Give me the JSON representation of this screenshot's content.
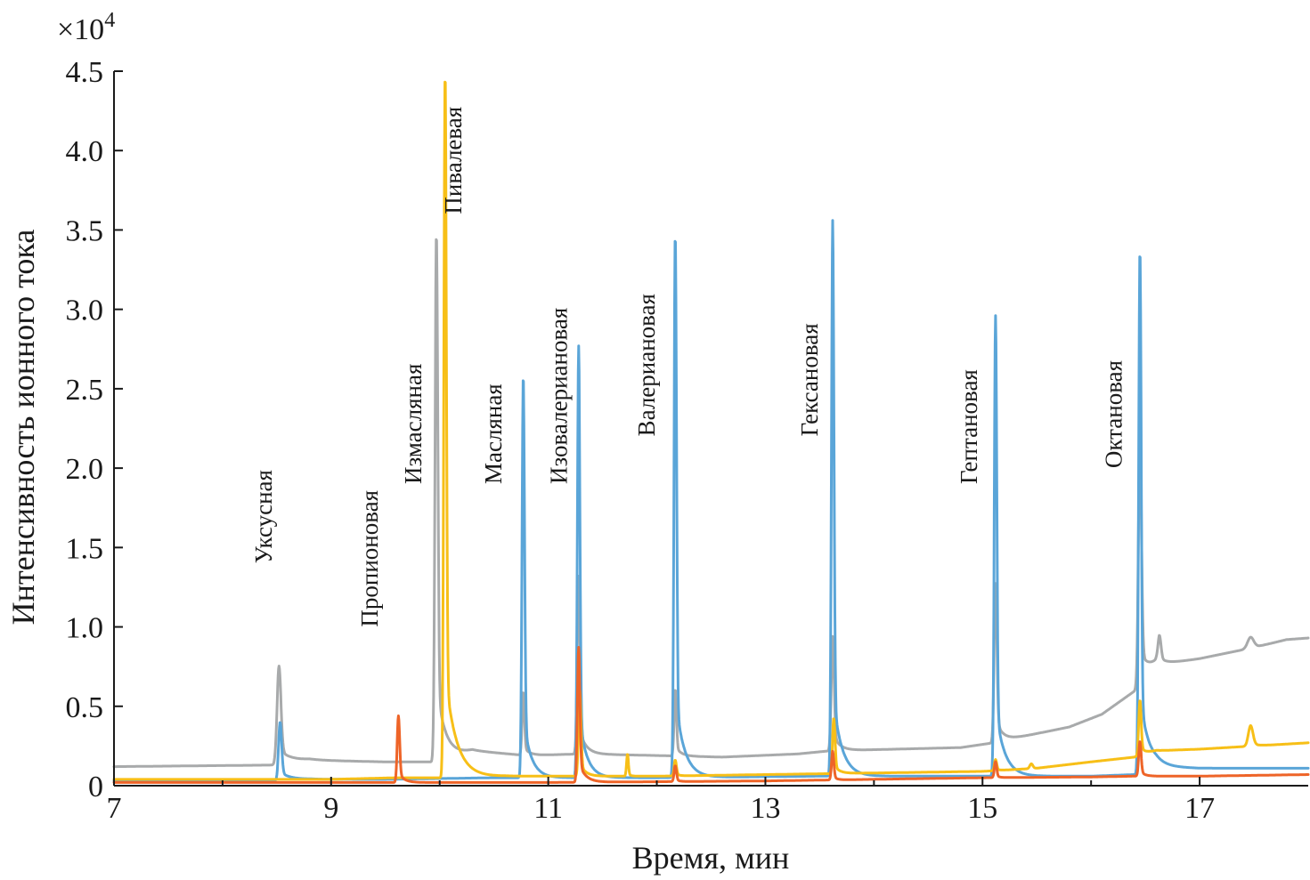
{
  "chart_data": {
    "type": "line",
    "xlabel": "Время, мин",
    "ylabel": "Интенсивность ионного тока",
    "y_multiplier": "×10",
    "y_multiplier_exp": "4",
    "xlim": [
      7,
      18
    ],
    "ylim": [
      0,
      4.5
    ],
    "x_ticks": [
      {
        "value": 7,
        "label": "7"
      },
      {
        "value": 9,
        "label": "9"
      },
      {
        "value": 11,
        "label": "11"
      },
      {
        "value": 13,
        "label": "13"
      },
      {
        "value": 15,
        "label": "15"
      },
      {
        "value": 17,
        "label": "17"
      }
    ],
    "y_ticks": [
      {
        "value": 0,
        "label": "0"
      },
      {
        "value": 0.5,
        "label": "0.5"
      },
      {
        "value": 1.0,
        "label": "1.0"
      },
      {
        "value": 1.5,
        "label": "1.5"
      },
      {
        "value": 2.0,
        "label": "2.0"
      },
      {
        "value": 2.5,
        "label": "2.5"
      },
      {
        "value": 3.0,
        "label": "3.0"
      },
      {
        "value": 3.5,
        "label": "3.5"
      },
      {
        "value": 4.0,
        "label": "4.0"
      },
      {
        "value": 4.5,
        "label": "4.5"
      }
    ],
    "annotations": [
      {
        "text": "Уксусная",
        "x": 8.45,
        "y": 1.4
      },
      {
        "text": "Пропионовая",
        "x": 9.43,
        "y": 1.0
      },
      {
        "text": "Измасляная",
        "x": 9.83,
        "y": 1.9
      },
      {
        "text": "Пивалевая",
        "x": 10.2,
        "y": 3.6
      },
      {
        "text": "Масляная",
        "x": 10.57,
        "y": 1.9
      },
      {
        "text": "Изовалериановая",
        "x": 11.17,
        "y": 1.9
      },
      {
        "text": "Валериановая",
        "x": 11.98,
        "y": 2.2
      },
      {
        "text": "Гексановая",
        "x": 13.48,
        "y": 2.2
      },
      {
        "text": "Гептановая",
        "x": 14.95,
        "y": 1.9
      },
      {
        "text": "Октановая",
        "x": 16.28,
        "y": 2.0
      }
    ],
    "series": [
      {
        "color": "#a8aaab",
        "baseline": [
          [
            7,
            0.12
          ],
          [
            8.48,
            0.13
          ],
          [
            8.8,
            0.16
          ],
          [
            9.5,
            0.15
          ],
          [
            9.98,
            0.15
          ],
          [
            10.3,
            0.22
          ],
          [
            10.8,
            0.19
          ],
          [
            11.3,
            0.2
          ],
          [
            12.0,
            0.19
          ],
          [
            12.6,
            0.18
          ],
          [
            13.3,
            0.2
          ],
          [
            13.6,
            0.22
          ],
          [
            14.2,
            0.23
          ],
          [
            14.8,
            0.24
          ],
          [
            15.1,
            0.27
          ],
          [
            15.3,
            0.3
          ],
          [
            15.8,
            0.37
          ],
          [
            16.1,
            0.45
          ],
          [
            16.45,
            0.62
          ],
          [
            16.6,
            0.76
          ],
          [
            17.0,
            0.8
          ],
          [
            17.5,
            0.87
          ],
          [
            17.8,
            0.92
          ],
          [
            18,
            0.93
          ]
        ],
        "peaks": [
          [
            8.52,
            0.62,
            0.025,
            0.12
          ],
          [
            9.97,
            3.33,
            0.018,
            0.08
          ],
          [
            10.77,
            0.4,
            0.015,
            0.05
          ],
          [
            11.28,
            1.12,
            0.018,
            0.06
          ],
          [
            12.17,
            0.42,
            0.015,
            0.05
          ],
          [
            13.62,
            0.72,
            0.018,
            0.06
          ],
          [
            15.12,
            1.0,
            0.018,
            0.06
          ],
          [
            16.45,
            1.55,
            0.02,
            0.08
          ],
          [
            16.63,
            0.16,
            0.02,
            0.04
          ],
          [
            17.47,
            0.07,
            0.04,
            0.05
          ]
        ]
      },
      {
        "color": "#5aa5d8",
        "baseline": [
          [
            7,
            0.03
          ],
          [
            8.5,
            0.03
          ],
          [
            8.8,
            0.04
          ],
          [
            9.5,
            0.04
          ],
          [
            10.5,
            0.05
          ],
          [
            11.0,
            0.05
          ],
          [
            12.0,
            0.05
          ],
          [
            13.5,
            0.06
          ],
          [
            14.5,
            0.06
          ],
          [
            15.0,
            0.06
          ],
          [
            16.0,
            0.06
          ],
          [
            16.4,
            0.07
          ],
          [
            16.6,
            0.12
          ],
          [
            17.0,
            0.11
          ],
          [
            17.5,
            0.11
          ],
          [
            18,
            0.11
          ]
        ],
        "peaks": [
          [
            8.53,
            0.37,
            0.02,
            0.1
          ],
          [
            10.77,
            2.54,
            0.016,
            0.07
          ],
          [
            11.28,
            2.72,
            0.016,
            0.07
          ],
          [
            12.17,
            3.43,
            0.016,
            0.08
          ],
          [
            13.62,
            3.5,
            0.016,
            0.08
          ],
          [
            15.12,
            2.9,
            0.016,
            0.08
          ],
          [
            16.45,
            3.3,
            0.016,
            0.08
          ]
        ]
      },
      {
        "color": "#f7bf17",
        "baseline": [
          [
            7,
            0.04
          ],
          [
            9.0,
            0.04
          ],
          [
            9.6,
            0.05
          ],
          [
            10.0,
            0.05
          ],
          [
            10.6,
            0.06
          ],
          [
            11.0,
            0.06
          ],
          [
            12.0,
            0.06
          ],
          [
            13.0,
            0.07
          ],
          [
            14.0,
            0.08
          ],
          [
            15.0,
            0.09
          ],
          [
            15.5,
            0.11
          ],
          [
            16.0,
            0.15
          ],
          [
            16.4,
            0.18
          ],
          [
            16.6,
            0.22
          ],
          [
            17.0,
            0.23
          ],
          [
            17.5,
            0.25
          ],
          [
            18,
            0.27
          ]
        ],
        "peaks": [
          [
            10.05,
            4.45,
            0.016,
            0.1
          ],
          [
            11.29,
            0.55,
            0.016,
            0.05
          ],
          [
            11.73,
            0.14,
            0.012,
            0.02
          ],
          [
            12.17,
            0.1,
            0.015,
            0.03
          ],
          [
            13.63,
            0.35,
            0.016,
            0.05
          ],
          [
            15.12,
            0.07,
            0.015,
            0.03
          ],
          [
            15.45,
            0.03,
            0.02,
            0.02
          ],
          [
            16.45,
            0.35,
            0.016,
            0.05
          ],
          [
            17.47,
            0.13,
            0.03,
            0.05
          ]
        ]
      },
      {
        "color": "#ee6428",
        "baseline": [
          [
            7,
            0.02
          ],
          [
            9.0,
            0.02
          ],
          [
            9.6,
            0.02
          ],
          [
            10.0,
            0.02
          ],
          [
            11.0,
            0.02
          ],
          [
            12.0,
            0.025
          ],
          [
            13.0,
            0.03
          ],
          [
            14.0,
            0.04
          ],
          [
            15.0,
            0.05
          ],
          [
            16.0,
            0.055
          ],
          [
            16.4,
            0.06
          ],
          [
            17.0,
            0.06
          ],
          [
            18,
            0.07
          ]
        ],
        "peaks": [
          [
            9.62,
            0.42,
            0.016,
            0.05
          ],
          [
            11.28,
            0.85,
            0.016,
            0.06
          ],
          [
            12.17,
            0.1,
            0.015,
            0.03
          ],
          [
            13.62,
            0.18,
            0.015,
            0.03
          ],
          [
            15.12,
            0.1,
            0.015,
            0.03
          ],
          [
            16.45,
            0.22,
            0.016,
            0.04
          ]
        ]
      }
    ]
  }
}
